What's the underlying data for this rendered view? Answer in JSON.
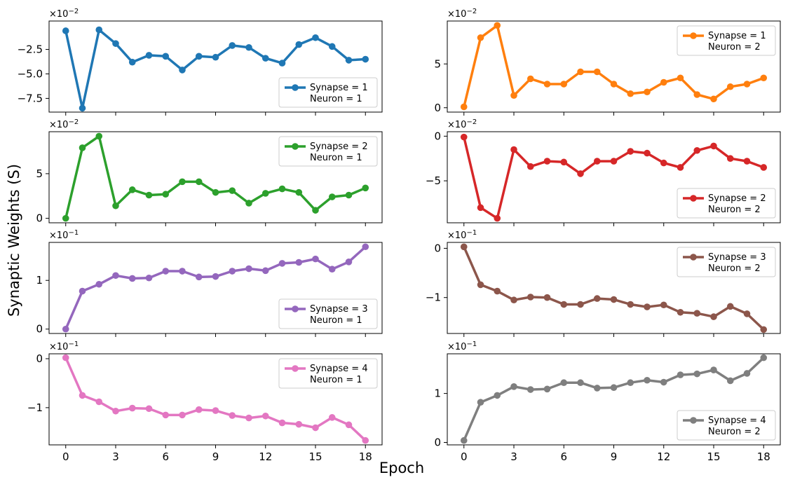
{
  "figure": {
    "ylabel": "Synaptic Weights (S)",
    "xlabel": "Epoch"
  },
  "chart_data": [
    {
      "type": "line",
      "row": 0,
      "col": 0,
      "color": "#1f77b4",
      "legend": [
        "Synapse = 1",
        "Neuron = 1"
      ],
      "legend_position": "lower-right",
      "sci_label": "×10",
      "sci_exp": "−2",
      "x": [
        0,
        1,
        2,
        3,
        4,
        5,
        6,
        7,
        8,
        9,
        10,
        11,
        12,
        13,
        14,
        15,
        16,
        17,
        18
      ],
      "values": [
        -0.6,
        -8.5,
        -0.5,
        -1.9,
        -3.8,
        -3.1,
        -3.2,
        -4.6,
        -3.2,
        -3.3,
        -2.1,
        -2.3,
        -3.4,
        -3.9,
        -2.0,
        -1.3,
        -2.2,
        -3.6,
        -3.5
      ],
      "xlim": [
        -1,
        19
      ],
      "ylim": [
        -8.9,
        0.4
      ],
      "yticks": [
        -7.5,
        -5.0,
        -2.5
      ],
      "ytick_labels": [
        "−7.5",
        "−5.0",
        "−2.5"
      ],
      "xticks": [
        0,
        3,
        6,
        9,
        12,
        15,
        18
      ]
    },
    {
      "type": "line",
      "row": 0,
      "col": 1,
      "color": "#ff7f0e",
      "legend": [
        "Synapse = 1",
        "Neuron = 2"
      ],
      "legend_position": "upper-right",
      "sci_label": "×10",
      "sci_exp": "−2",
      "x": [
        0,
        1,
        2,
        3,
        4,
        5,
        6,
        7,
        8,
        9,
        10,
        11,
        12,
        13,
        14,
        15,
        16,
        17,
        18
      ],
      "values": [
        0.1,
        8.0,
        9.4,
        1.4,
        3.3,
        2.7,
        2.7,
        4.1,
        4.1,
        2.7,
        1.6,
        1.8,
        2.9,
        3.4,
        1.5,
        1.0,
        2.4,
        2.7,
        3.4
      ],
      "xlim": [
        -1,
        19
      ],
      "ylim": [
        -0.5,
        9.9
      ],
      "yticks": [
        0,
        5
      ],
      "ytick_labels": [
        "0",
        "5"
      ],
      "xticks": [
        0,
        3,
        6,
        9,
        12,
        15,
        18
      ]
    },
    {
      "type": "line",
      "row": 1,
      "col": 0,
      "color": "#2ca02c",
      "legend": [
        "Synapse = 2",
        "Neuron = 1"
      ],
      "legend_position": "upper-right",
      "sci_label": "×10",
      "sci_exp": "−2",
      "x": [
        0,
        1,
        2,
        3,
        4,
        5,
        6,
        7,
        8,
        9,
        10,
        11,
        12,
        13,
        14,
        15,
        16,
        17,
        18
      ],
      "values": [
        0.0,
        7.9,
        9.2,
        1.4,
        3.2,
        2.6,
        2.7,
        4.1,
        4.1,
        2.9,
        3.1,
        1.7,
        2.8,
        3.3,
        2.9,
        0.9,
        2.4,
        2.6,
        3.4
      ],
      "xlim": [
        -1,
        19
      ],
      "ylim": [
        -0.5,
        9.7
      ],
      "yticks": [
        0,
        5
      ],
      "ytick_labels": [
        "0",
        "5"
      ],
      "xticks": [
        0,
        3,
        6,
        9,
        12,
        15,
        18
      ]
    },
    {
      "type": "line",
      "row": 1,
      "col": 1,
      "color": "#d62728",
      "legend": [
        "Synapse = 2",
        "Neuron = 2"
      ],
      "legend_position": "lower-right",
      "sci_label": "×10",
      "sci_exp": "−2",
      "x": [
        0,
        1,
        2,
        3,
        4,
        5,
        6,
        7,
        8,
        9,
        10,
        11,
        12,
        13,
        14,
        15,
        16,
        17,
        18
      ],
      "values": [
        -0.1,
        -8.0,
        -9.2,
        -1.5,
        -3.4,
        -2.8,
        -2.9,
        -4.2,
        -2.8,
        -2.8,
        -1.7,
        -1.9,
        -3.0,
        -3.5,
        -1.6,
        -1.1,
        -2.5,
        -2.8,
        -3.5
      ],
      "xlim": [
        -1,
        19
      ],
      "ylim": [
        -9.7,
        0.5
      ],
      "yticks": [
        -5,
        0
      ],
      "ytick_labels": [
        "−5",
        "0"
      ],
      "xticks": [
        0,
        3,
        6,
        9,
        12,
        15,
        18
      ]
    },
    {
      "type": "line",
      "row": 2,
      "col": 0,
      "color": "#9467bd",
      "legend": [
        "Synapse = 3",
        "Neuron = 1"
      ],
      "legend_position": "lower-right",
      "sci_label": "×10",
      "sci_exp": "−1",
      "x": [
        0,
        1,
        2,
        3,
        4,
        5,
        6,
        7,
        8,
        9,
        10,
        11,
        12,
        13,
        14,
        15,
        16,
        17,
        18
      ],
      "values": [
        0.0,
        0.78,
        0.92,
        1.1,
        1.04,
        1.05,
        1.19,
        1.19,
        1.07,
        1.08,
        1.19,
        1.24,
        1.2,
        1.35,
        1.37,
        1.44,
        1.23,
        1.38,
        1.69
      ],
      "xlim": [
        -1,
        19
      ],
      "ylim": [
        -0.09,
        1.78
      ],
      "yticks": [
        0,
        1
      ],
      "ytick_labels": [
        "0",
        "1"
      ],
      "xticks": [
        0,
        3,
        6,
        9,
        12,
        15,
        18
      ]
    },
    {
      "type": "line",
      "row": 2,
      "col": 1,
      "color": "#8c564b",
      "legend": [
        "Synapse = 3",
        "Neuron = 2"
      ],
      "legend_position": "upper-right",
      "sci_label": "×10",
      "sci_exp": "−1",
      "x": [
        0,
        1,
        2,
        3,
        4,
        5,
        6,
        7,
        8,
        9,
        10,
        11,
        12,
        13,
        14,
        15,
        16,
        17,
        18
      ],
      "values": [
        0.03,
        -0.74,
        -0.87,
        -1.05,
        -0.99,
        -1.0,
        -1.14,
        -1.14,
        -1.02,
        -1.04,
        -1.14,
        -1.19,
        -1.15,
        -1.3,
        -1.32,
        -1.39,
        -1.18,
        -1.33,
        -1.65
      ],
      "xlim": [
        -1,
        19
      ],
      "ylim": [
        -1.73,
        0.12
      ],
      "yticks": [
        -1,
        0
      ],
      "ytick_labels": [
        "−1",
        "0"
      ],
      "xticks": [
        0,
        3,
        6,
        9,
        12,
        15,
        18
      ]
    },
    {
      "type": "line",
      "row": 3,
      "col": 0,
      "color": "#e377c2",
      "legend": [
        "Synapse = 4",
        "Neuron = 1"
      ],
      "legend_position": "upper-right",
      "sci_label": "×10",
      "sci_exp": "−1",
      "x": [
        0,
        1,
        2,
        3,
        4,
        5,
        6,
        7,
        8,
        9,
        10,
        11,
        12,
        13,
        14,
        15,
        16,
        17,
        18
      ],
      "values": [
        0.02,
        -0.75,
        -0.88,
        -1.07,
        -1.01,
        -1.02,
        -1.15,
        -1.15,
        -1.04,
        -1.06,
        -1.16,
        -1.21,
        -1.17,
        -1.31,
        -1.34,
        -1.41,
        -1.2,
        -1.35,
        -1.67
      ],
      "xlim": [
        -1,
        19
      ],
      "ylim": [
        -1.76,
        0.1
      ],
      "yticks": [
        -1,
        0
      ],
      "ytick_labels": [
        "−1",
        "0"
      ],
      "xticks": [
        0,
        3,
        6,
        9,
        12,
        15,
        18
      ]
    },
    {
      "type": "line",
      "row": 3,
      "col": 1,
      "color": "#7f7f7f",
      "legend": [
        "Synapse = 4",
        "Neuron = 2"
      ],
      "legend_position": "lower-right",
      "sci_label": "×10",
      "sci_exp": "−1",
      "x": [
        0,
        1,
        2,
        3,
        4,
        5,
        6,
        7,
        8,
        9,
        10,
        11,
        12,
        13,
        14,
        15,
        16,
        17,
        18
      ],
      "values": [
        0.04,
        0.82,
        0.96,
        1.14,
        1.08,
        1.09,
        1.22,
        1.22,
        1.11,
        1.12,
        1.22,
        1.27,
        1.23,
        1.38,
        1.4,
        1.48,
        1.26,
        1.41,
        1.73
      ],
      "xlim": [
        -1,
        19
      ],
      "ylim": [
        -0.05,
        1.81
      ],
      "yticks": [
        0,
        1
      ],
      "ytick_labels": [
        "0",
        "1"
      ],
      "xticks": [
        0,
        3,
        6,
        9,
        12,
        15,
        18
      ]
    }
  ]
}
